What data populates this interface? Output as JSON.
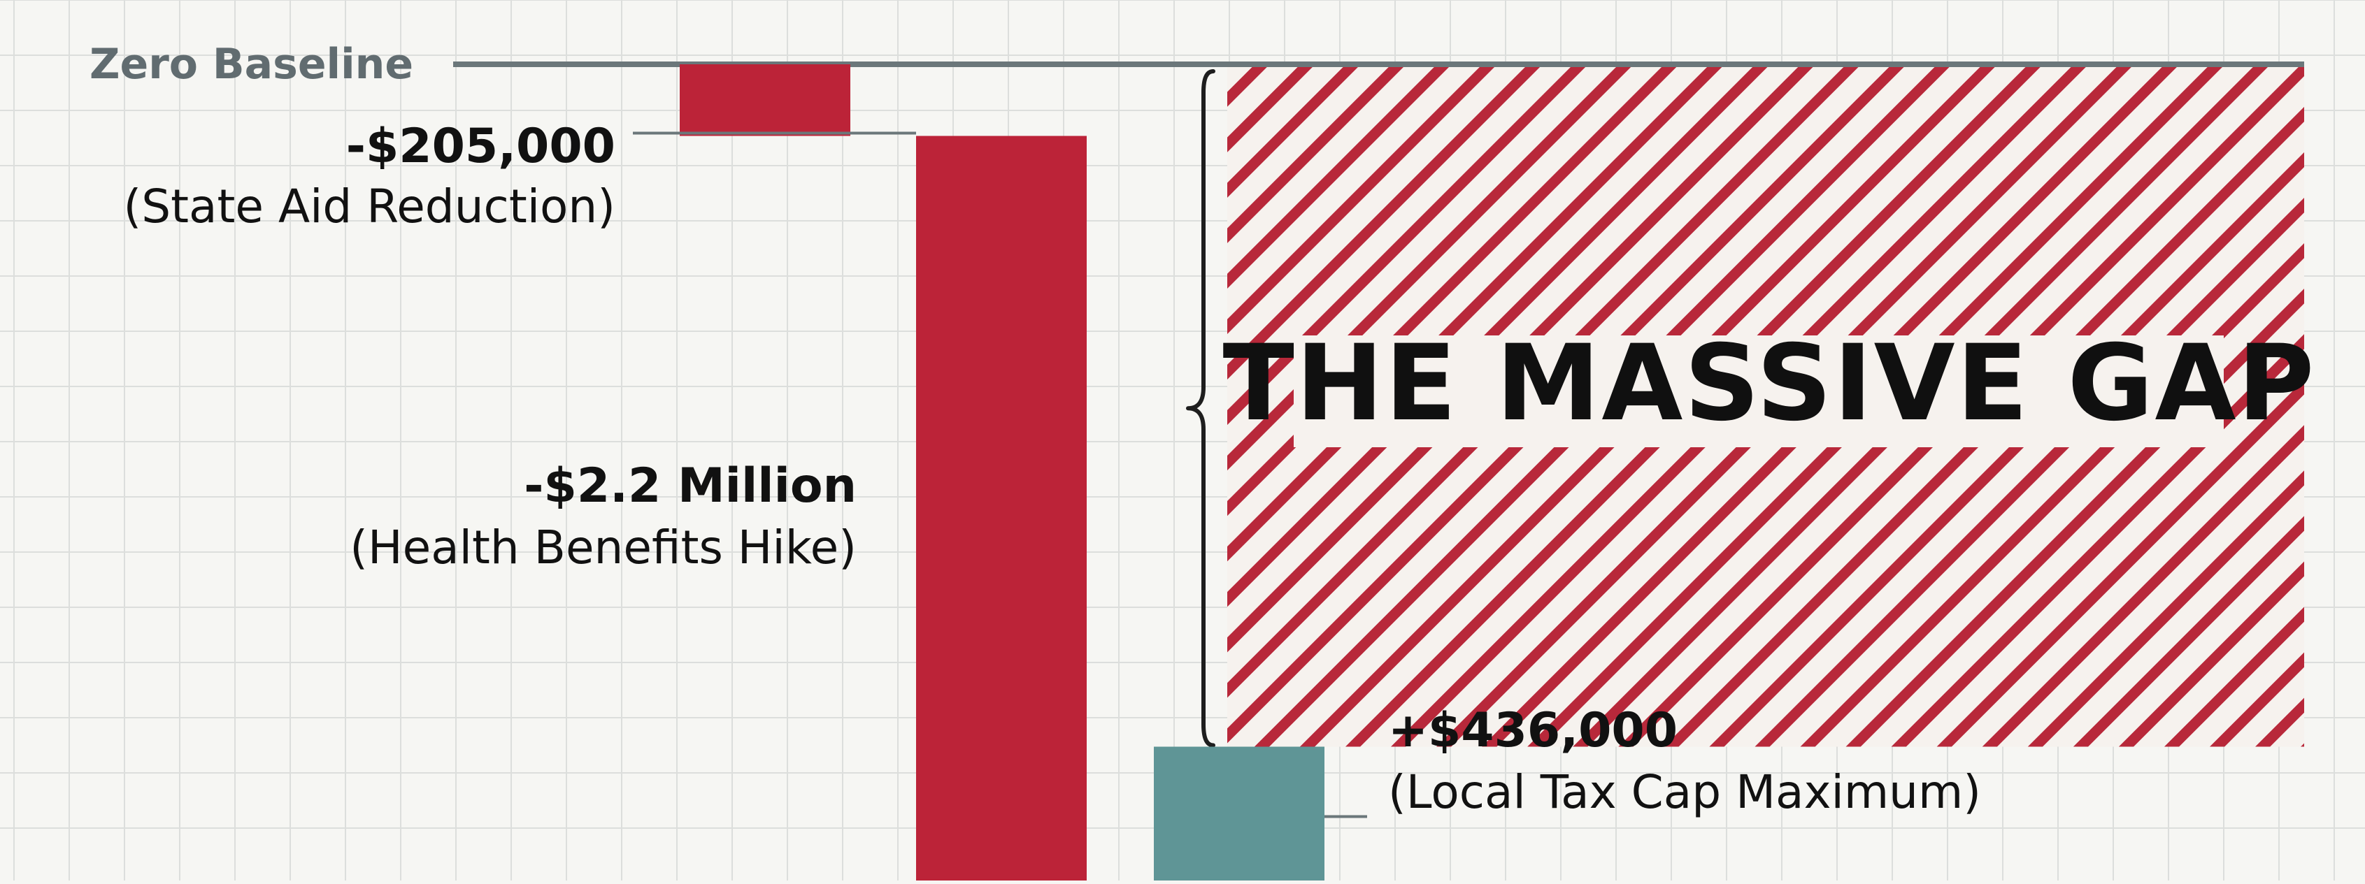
{
  "colors": {
    "background": "#f6f6f3",
    "grid": "#dcdedc",
    "baseline": "#6b777a",
    "negative": "#bc2338",
    "positive": "#5f9596",
    "hatch": "#b8283a",
    "hatch_bg": "#f6f2ee",
    "bracket": "#1e1e1e",
    "text": "#111111"
  },
  "chart_data": {
    "type": "bar",
    "subtype": "waterfall",
    "baseline": {
      "label": "Zero Baseline",
      "value": 0
    },
    "categories": [
      "State Aid Reduction",
      "Health Benefits Hike",
      "Local Tax Cap Maximum"
    ],
    "values": [
      -205000,
      -2200000,
      436000
    ],
    "labels": [
      {
        "value_text": "-$205,000",
        "desc_text": "(State Aid Reduction)"
      },
      {
        "value_text": "-$2.2 Million",
        "desc_text": "(Health Benefits Hike)"
      },
      {
        "value_text": "+$436,000",
        "desc_text": "(Local Tax Cap Maximum)"
      }
    ],
    "gap": {
      "label": "THE MASSIVE GAP"
    },
    "grid": true,
    "legend": "none"
  }
}
